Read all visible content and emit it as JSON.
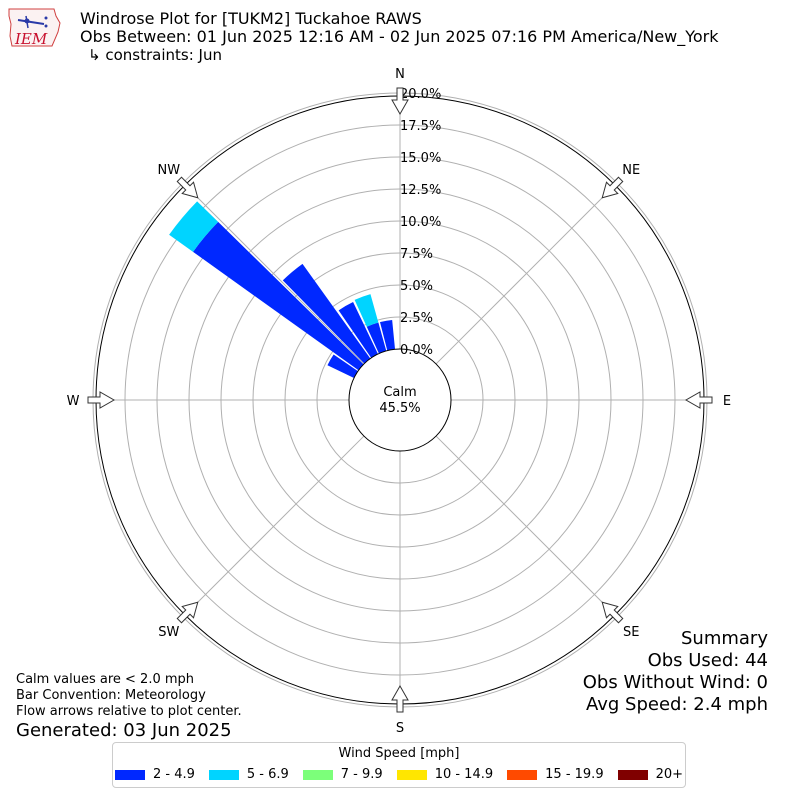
{
  "header": {
    "line1": "Windrose Plot for [TUKM2] Tuckahoe RAWS",
    "line2": "Obs Between: 01 Jun 2025 12:16 AM - 02 Jun 2025 07:16 PM America/New_York",
    "line3": "↳ constraints: Jun"
  },
  "logo": {
    "text": "IEM",
    "color": "#c8102e"
  },
  "summary": {
    "title": "Summary",
    "obs_used": "Obs Used: 44",
    "obs_without_wind": "Obs Without Wind: 0",
    "avg_speed": "Avg Speed: 2.4 mph"
  },
  "notes": {
    "calm_note": "Calm values are < 2.0 mph",
    "bar_convention": "Bar Convention: Meteorology",
    "flow_arrows": "Flow arrows relative to plot center.",
    "generated": "Generated: 03 Jun 2025"
  },
  "chart_data": {
    "type": "windrose",
    "calm_label": "Calm",
    "calm_value": "45.5%",
    "calm_percent": 45.5,
    "directions": [
      "N",
      "NE",
      "E",
      "SE",
      "S",
      "SW",
      "W",
      "NW"
    ],
    "radial_ticks": [
      "0.0%",
      "2.5%",
      "5.0%",
      "7.5%",
      "10.0%",
      "12.5%",
      "15.0%",
      "17.5%",
      "20.0%"
    ],
    "rmax": 20,
    "bin_width_deg": 10,
    "legend_title": "Wind Speed [mph]",
    "speed_bins": [
      {
        "label": "2 - 4.9",
        "color": "#0028ff"
      },
      {
        "label": "5 - 6.9",
        "color": "#00d4ff"
      },
      {
        "label": "7 - 9.9",
        "color": "#7cff7a"
      },
      {
        "label": "10 - 14.9",
        "color": "#ffe600"
      },
      {
        "label": "15 - 19.9",
        "color": "#ff4a00"
      },
      {
        "label": "20+",
        "color": "#800000"
      }
    ],
    "bars": [
      {
        "direction_deg": 300,
        "values": [
          2.3,
          0,
          0,
          0,
          0,
          0
        ]
      },
      {
        "direction_deg": 310,
        "values": [
          15.9,
          2.3,
          0,
          0,
          0,
          0
        ]
      },
      {
        "direction_deg": 320,
        "values": [
          9.1,
          0,
          0,
          0,
          0,
          0
        ]
      },
      {
        "direction_deg": 330,
        "values": [
          4.5,
          0,
          0,
          0,
          0,
          0
        ]
      },
      {
        "direction_deg": 340,
        "values": [
          2.3,
          2.3,
          0,
          0,
          0,
          0
        ]
      },
      {
        "direction_deg": 350,
        "values": [
          2.3,
          0,
          0,
          0,
          0,
          0
        ]
      }
    ]
  }
}
